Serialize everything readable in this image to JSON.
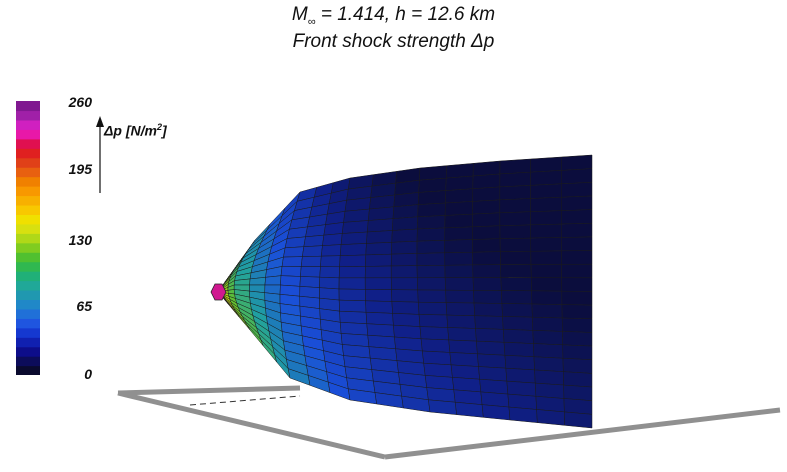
{
  "title": {
    "mach_symbol": "M",
    "mach_subscript": "∞",
    "line1_rest": " = 1.414, h = 12.6 km",
    "line2": "Front shock strength Δp"
  },
  "colorbar": {
    "ticks": [
      "260",
      "195",
      "130",
      "65",
      "0"
    ],
    "min": 0,
    "max": 260,
    "colors": [
      "#0a0a2e",
      "#0c0c5a",
      "#0d0d8a",
      "#1020b0",
      "#1538d0",
      "#1f55e0",
      "#2070d8",
      "#2088c8",
      "#2098b0",
      "#20a898",
      "#20b078",
      "#30b850",
      "#50c030",
      "#80cc20",
      "#b0d818",
      "#d8e010",
      "#f0e000",
      "#f8c800",
      "#f8b000",
      "#f89800",
      "#f08000",
      "#e86010",
      "#e04018",
      "#e02020",
      "#e01050",
      "#e818a8",
      "#d020c0",
      "#a020a8",
      "#801890"
    ]
  },
  "axis": {
    "label": "Δp [N/m",
    "label_sup": "2",
    "label_tail": "]"
  },
  "surface_colors": {
    "peak": "#d01890",
    "hot": "#f8c000",
    "yellow": "#e0e010",
    "green": "#60c030",
    "teal": "#20a0a0",
    "blue": "#1a4fd8",
    "navy": "#10208a",
    "darknavy": "#0a0a30",
    "floor_edge": "#909090"
  }
}
